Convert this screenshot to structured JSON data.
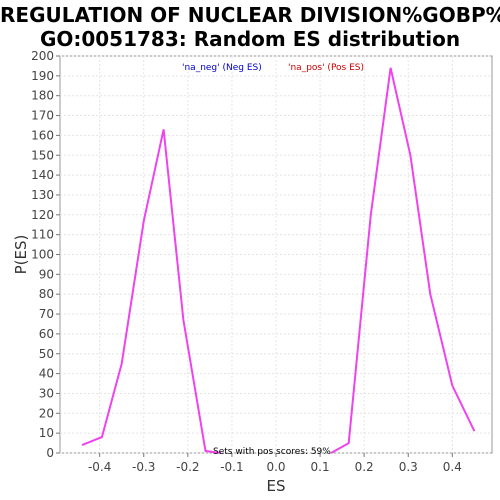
{
  "title_line1": "REGULATION OF NUCLEAR DIVISION%GOBP%",
  "title_line2": "GO:0051783: Random ES distribution",
  "chart_data": {
    "type": "line",
    "xlabel": "ES",
    "ylabel": "P(ES)",
    "xlim": [
      -0.49,
      0.49
    ],
    "ylim": [
      0,
      200
    ],
    "xticks": [
      -0.4,
      -0.3,
      -0.2,
      -0.1,
      0.0,
      0.1,
      0.2,
      0.3,
      0.4
    ],
    "xtick_labels": [
      "-0.4",
      "-0.3",
      "-0.2",
      "-0.1",
      "0.0",
      "0.1",
      "0.2",
      "0.3",
      "0.4"
    ],
    "yticks": [
      0,
      10,
      20,
      30,
      40,
      50,
      60,
      70,
      80,
      90,
      100,
      110,
      120,
      130,
      140,
      150,
      160,
      170,
      180,
      190,
      200
    ],
    "grid": true,
    "legend_position": "top",
    "series": [
      {
        "name": "'na_neg' (Neg ES)",
        "color": "#0000cc",
        "line_color": "#ee44ee",
        "points": [
          [
            -0.44,
            4
          ],
          [
            -0.395,
            8
          ],
          [
            -0.35,
            45
          ],
          [
            -0.3,
            117
          ],
          [
            -0.255,
            163
          ],
          [
            -0.21,
            67
          ],
          [
            -0.16,
            1
          ],
          [
            -0.125,
            0
          ]
        ]
      },
      {
        "name": "'na_pos' (Pos ES)",
        "color": "#cc0000",
        "line_color": "#ee44ee",
        "points": [
          [
            0.125,
            0
          ],
          [
            0.165,
            5
          ],
          [
            0.215,
            120
          ],
          [
            0.26,
            194
          ],
          [
            0.305,
            150
          ],
          [
            0.35,
            80
          ],
          [
            0.4,
            34
          ],
          [
            0.45,
            11
          ]
        ]
      }
    ],
    "annotation": "Sets with pos scores: 59%"
  }
}
